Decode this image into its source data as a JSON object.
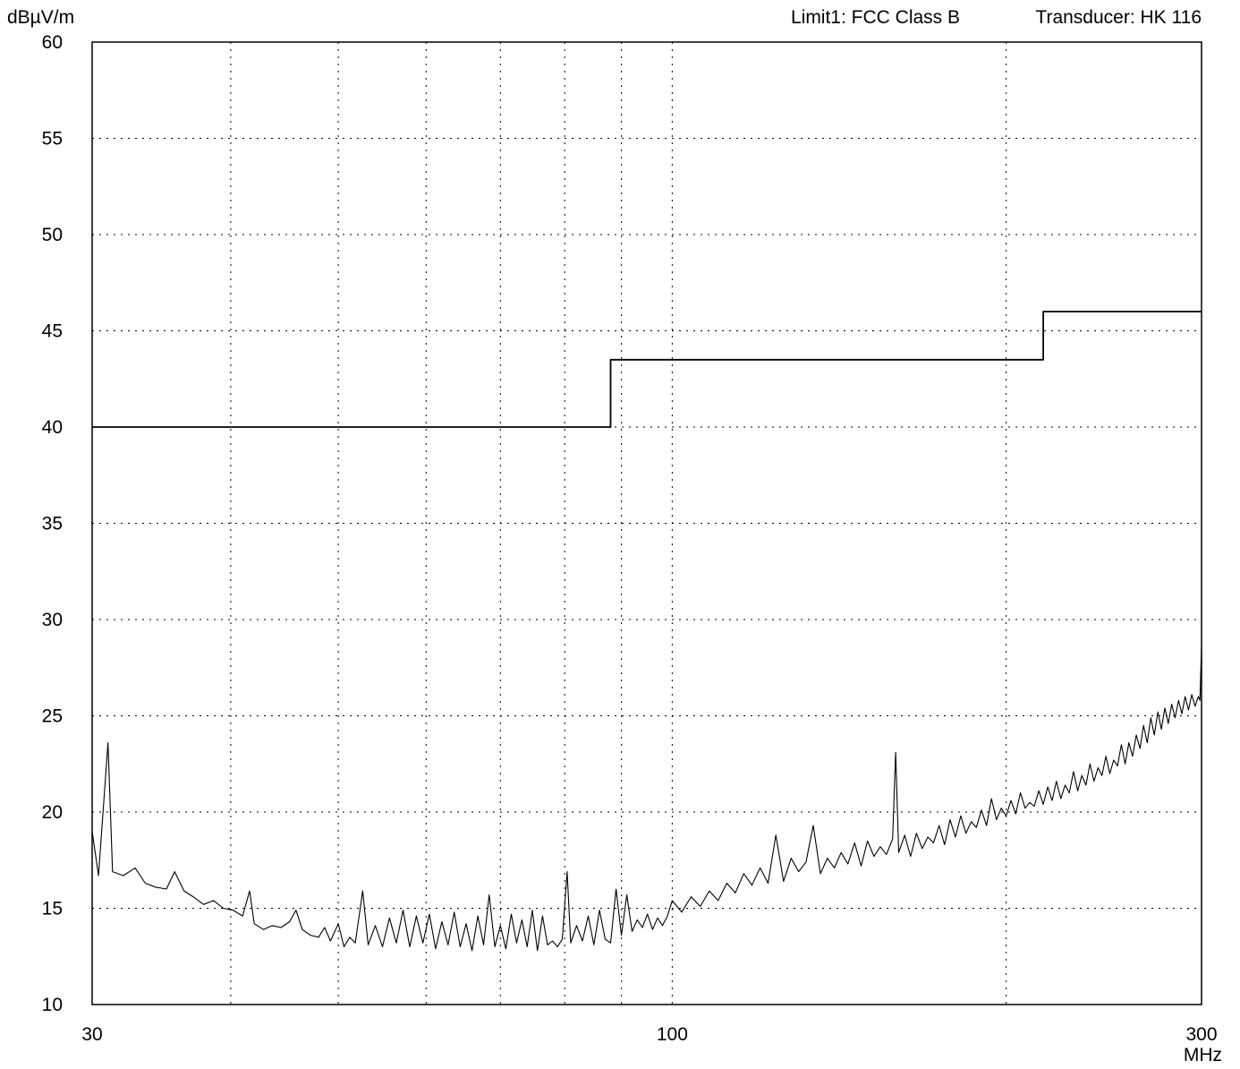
{
  "chart_data": {
    "type": "line",
    "ylabel": "dBµV/m",
    "xunit": "MHz",
    "x_scale": "log",
    "xlim": [
      30,
      300
    ],
    "ylim": [
      10,
      60
    ],
    "grid": true,
    "header": {
      "limit_text": "Limit1: FCC Class B",
      "transducer_text": "Transducer: HK 116"
    },
    "y_ticks": [
      {
        "value": 60,
        "label": "60"
      },
      {
        "value": 55,
        "label": "55"
      },
      {
        "value": 50,
        "label": "50"
      },
      {
        "value": 45,
        "label": "45"
      },
      {
        "value": 40,
        "label": "40"
      },
      {
        "value": 35,
        "label": "35"
      },
      {
        "value": 30,
        "label": "30"
      },
      {
        "value": 25,
        "label": "25"
      },
      {
        "value": 20,
        "label": "20"
      },
      {
        "value": 15,
        "label": "15"
      },
      {
        "value": 10,
        "label": "10"
      }
    ],
    "x_ticks": [
      {
        "value": 30,
        "label": "30"
      },
      {
        "value": 100,
        "label": "100"
      },
      {
        "value": 300,
        "label": "300"
      }
    ],
    "x_minor_gridlines": [
      40,
      50,
      60,
      70,
      80,
      90,
      200
    ],
    "series": [
      {
        "role": "limit",
        "color": "#000000",
        "points": [
          [
            30,
            40
          ],
          [
            88,
            40
          ],
          [
            88,
            43.5
          ],
          [
            216,
            43.5
          ],
          [
            216,
            46
          ],
          [
            300,
            46
          ]
        ]
      },
      {
        "role": "measurement",
        "color": "#000000",
        "points": [
          [
            30.0,
            19.0
          ],
          [
            30.4,
            16.7
          ],
          [
            31.0,
            23.6
          ],
          [
            31.3,
            16.9
          ],
          [
            32.0,
            16.7
          ],
          [
            32.8,
            17.1
          ],
          [
            33.5,
            16.3
          ],
          [
            34.2,
            16.1
          ],
          [
            35.0,
            16.0
          ],
          [
            35.6,
            16.9
          ],
          [
            36.3,
            15.9
          ],
          [
            37.0,
            15.6
          ],
          [
            37.8,
            15.2
          ],
          [
            38.6,
            15.4
          ],
          [
            39.4,
            15.0
          ],
          [
            40.2,
            14.9
          ],
          [
            41.0,
            14.6
          ],
          [
            41.6,
            15.9
          ],
          [
            42.0,
            14.2
          ],
          [
            42.8,
            13.9
          ],
          [
            43.6,
            14.1
          ],
          [
            44.4,
            14.0
          ],
          [
            45.2,
            14.3
          ],
          [
            45.8,
            14.9
          ],
          [
            46.4,
            13.9
          ],
          [
            47.2,
            13.6
          ],
          [
            48.0,
            13.5
          ],
          [
            48.6,
            14.0
          ],
          [
            49.2,
            13.3
          ],
          [
            50.0,
            14.2
          ],
          [
            50.6,
            13.0
          ],
          [
            51.2,
            13.5
          ],
          [
            51.8,
            13.2
          ],
          [
            52.6,
            15.9
          ],
          [
            53.2,
            13.1
          ],
          [
            54.0,
            14.1
          ],
          [
            54.8,
            13.0
          ],
          [
            55.6,
            14.5
          ],
          [
            56.4,
            13.2
          ],
          [
            57.2,
            14.9
          ],
          [
            58.0,
            13.0
          ],
          [
            58.8,
            14.6
          ],
          [
            59.6,
            13.2
          ],
          [
            60.4,
            14.7
          ],
          [
            61.2,
            12.9
          ],
          [
            62.0,
            14.3
          ],
          [
            62.8,
            13.1
          ],
          [
            63.6,
            14.8
          ],
          [
            64.4,
            13.0
          ],
          [
            65.2,
            14.2
          ],
          [
            66.0,
            12.8
          ],
          [
            66.8,
            14.6
          ],
          [
            67.6,
            13.1
          ],
          [
            68.4,
            15.7
          ],
          [
            69.2,
            13.0
          ],
          [
            70.0,
            14.1
          ],
          [
            70.8,
            12.9
          ],
          [
            71.6,
            14.7
          ],
          [
            72.4,
            13.2
          ],
          [
            73.2,
            14.4
          ],
          [
            74.0,
            13.0
          ],
          [
            74.8,
            14.9
          ],
          [
            75.6,
            12.8
          ],
          [
            76.4,
            14.6
          ],
          [
            77.2,
            13.1
          ],
          [
            78.0,
            13.3
          ],
          [
            78.8,
            13.0
          ],
          [
            79.6,
            13.4
          ],
          [
            80.4,
            16.9
          ],
          [
            81.0,
            13.2
          ],
          [
            82.0,
            14.1
          ],
          [
            83.0,
            13.3
          ],
          [
            84.0,
            14.6
          ],
          [
            85.0,
            13.1
          ],
          [
            86.0,
            14.9
          ],
          [
            87.0,
            13.4
          ],
          [
            88.0,
            13.2
          ],
          [
            89.0,
            16.0
          ],
          [
            90.0,
            13.6
          ],
          [
            91.0,
            15.7
          ],
          [
            92.0,
            13.8
          ],
          [
            93.0,
            14.4
          ],
          [
            94.0,
            14.0
          ],
          [
            95.0,
            14.7
          ],
          [
            96.0,
            13.9
          ],
          [
            97.0,
            14.5
          ],
          [
            98.0,
            14.1
          ],
          [
            99.0,
            14.6
          ],
          [
            100.0,
            15.4
          ],
          [
            102.0,
            14.8
          ],
          [
            104.0,
            15.6
          ],
          [
            106.0,
            15.1
          ],
          [
            108.0,
            15.9
          ],
          [
            110.0,
            15.4
          ],
          [
            112.0,
            16.3
          ],
          [
            114.0,
            15.8
          ],
          [
            116.0,
            16.8
          ],
          [
            118.0,
            16.2
          ],
          [
            120.0,
            17.1
          ],
          [
            122.0,
            16.3
          ],
          [
            124.0,
            18.8
          ],
          [
            126.0,
            16.4
          ],
          [
            128.0,
            17.6
          ],
          [
            130.0,
            16.9
          ],
          [
            132.0,
            17.4
          ],
          [
            134.0,
            19.3
          ],
          [
            136.0,
            16.8
          ],
          [
            138.0,
            17.6
          ],
          [
            140.0,
            17.1
          ],
          [
            142.0,
            17.9
          ],
          [
            144.0,
            17.3
          ],
          [
            146.0,
            18.4
          ],
          [
            148.0,
            17.2
          ],
          [
            150.0,
            18.5
          ],
          [
            152.0,
            17.7
          ],
          [
            154.0,
            18.2
          ],
          [
            156.0,
            17.8
          ],
          [
            158.0,
            18.6
          ],
          [
            159.0,
            23.1
          ],
          [
            160.0,
            17.9
          ],
          [
            162.0,
            18.8
          ],
          [
            164.0,
            17.7
          ],
          [
            166.0,
            18.9
          ],
          [
            168.0,
            18.1
          ],
          [
            170.0,
            18.7
          ],
          [
            172.0,
            18.4
          ],
          [
            174.0,
            19.3
          ],
          [
            176.0,
            18.3
          ],
          [
            178.0,
            19.6
          ],
          [
            180.0,
            18.7
          ],
          [
            182.0,
            19.8
          ],
          [
            184.0,
            18.9
          ],
          [
            186.0,
            19.5
          ],
          [
            188.0,
            19.2
          ],
          [
            190.0,
            20.1
          ],
          [
            192.0,
            19.3
          ],
          [
            194.0,
            20.7
          ],
          [
            196.0,
            19.6
          ],
          [
            198.0,
            20.2
          ],
          [
            200.0,
            19.8
          ],
          [
            202.0,
            20.6
          ],
          [
            204.0,
            19.9
          ],
          [
            206.0,
            21.0
          ],
          [
            208.0,
            20.2
          ],
          [
            210.0,
            20.5
          ],
          [
            212.0,
            20.3
          ],
          [
            214.0,
            21.1
          ],
          [
            216.0,
            20.4
          ],
          [
            218.0,
            21.3
          ],
          [
            220.0,
            20.6
          ],
          [
            222.0,
            21.6
          ],
          [
            224.0,
            20.7
          ],
          [
            226.0,
            21.4
          ],
          [
            228.0,
            21.0
          ],
          [
            230.0,
            22.1
          ],
          [
            232.0,
            21.1
          ],
          [
            234.0,
            21.9
          ],
          [
            236.0,
            21.4
          ],
          [
            238.0,
            22.5
          ],
          [
            240.0,
            21.6
          ],
          [
            242.0,
            22.3
          ],
          [
            244.0,
            21.9
          ],
          [
            246.0,
            22.9
          ],
          [
            248.0,
            22.0
          ],
          [
            250.0,
            22.7
          ],
          [
            252.0,
            22.4
          ],
          [
            254.0,
            23.5
          ],
          [
            256.0,
            22.5
          ],
          [
            258.0,
            23.6
          ],
          [
            260.0,
            22.9
          ],
          [
            262.0,
            24.0
          ],
          [
            264.0,
            23.3
          ],
          [
            266.0,
            24.5
          ],
          [
            268.0,
            23.6
          ],
          [
            270.0,
            24.9
          ],
          [
            272.0,
            24.0
          ],
          [
            274.0,
            25.2
          ],
          [
            276.0,
            24.3
          ],
          [
            278.0,
            25.4
          ],
          [
            280.0,
            24.6
          ],
          [
            282.0,
            25.6
          ],
          [
            284.0,
            24.9
          ],
          [
            286.0,
            25.8
          ],
          [
            288.0,
            25.1
          ],
          [
            290.0,
            26.0
          ],
          [
            292.0,
            25.3
          ],
          [
            294.0,
            26.1
          ],
          [
            296.0,
            25.5
          ],
          [
            298.0,
            26.0
          ],
          [
            299.0,
            25.8
          ],
          [
            300.0,
            28.6
          ]
        ]
      }
    ]
  }
}
